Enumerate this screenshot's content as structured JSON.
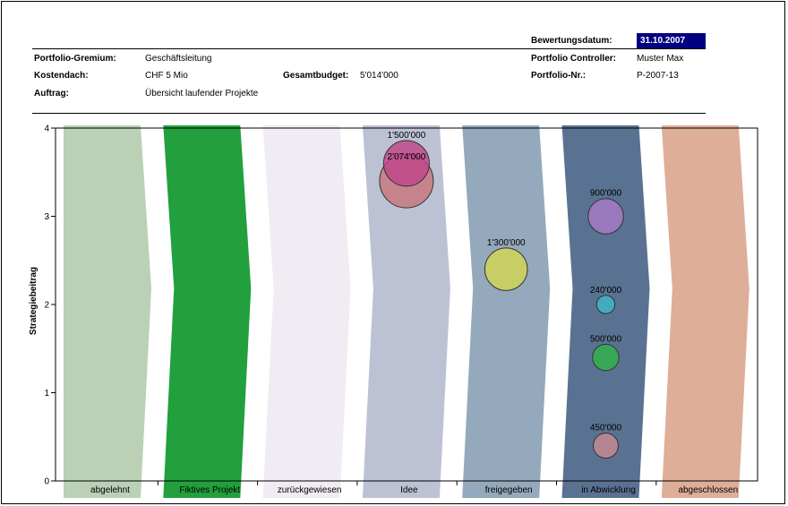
{
  "header": {
    "bewertungsdatum_label": "Bewertungsdatum:",
    "bewertungsdatum_value": "31.10.2007",
    "gremium_label": "Portfolio-Gremium:",
    "gremium_value": "Geschäftsleitung",
    "controller_label": "Portfolio Controller:",
    "controller_value": "Muster Max",
    "kostendach_label": "Kostendach:",
    "kostendach_value": "CHF 5 Mio",
    "gesamtbudget_label": "Gesamtbudget:",
    "gesamtbudget_value": "5'014'000",
    "portfolio_nr_label": "Portfolio-Nr.:",
    "portfolio_nr_value": "P-2007-13",
    "auftrag_label": "Auftrag:",
    "auftrag_value": "Übersicht laufender Projekte"
  },
  "chart_data": {
    "type": "scatter",
    "subtype": "bubble-over-phase-bands",
    "ylabel": "Strategiebeitrag",
    "ylim": [
      0,
      4
    ],
    "yticks": [
      "0",
      "1",
      "2",
      "3",
      "4"
    ],
    "categories": [
      "abgelehnt",
      "Fiktives Projekt",
      "zurückgewiesen",
      "Idee",
      "freigegeben",
      "in Abwicklung",
      "abgeschlossen"
    ],
    "band_colors": [
      "#bad1b6",
      "#21a03d",
      "#f1ecf4",
      "#bcc2d4",
      "#94a9bb",
      "#5a7291",
      "#deae98"
    ],
    "bubbles": [
      {
        "category": "Idee",
        "y": 3.4,
        "value": 2074000,
        "label": "2'074'000",
        "color": "#c7767c"
      },
      {
        "category": "Idee",
        "y": 3.6,
        "value": 1500000,
        "label": "1'500'000",
        "color": "#c0468a"
      },
      {
        "category": "freigegeben",
        "y": 2.4,
        "value": 1300000,
        "label": "1'300'000",
        "color": "#d2d653"
      },
      {
        "category": "in Abwicklung",
        "y": 3.0,
        "value": 900000,
        "label": "900'000",
        "color": "#a77ac8"
      },
      {
        "category": "in Abwicklung",
        "y": 2.0,
        "value": 240000,
        "label": "240'000",
        "color": "#3fb8c9"
      },
      {
        "category": "in Abwicklung",
        "y": 1.4,
        "value": 500000,
        "label": "500'000",
        "color": "#2fb34a"
      },
      {
        "category": "in Abwicklung",
        "y": 0.4,
        "value": 450000,
        "label": "450'000",
        "color": "#c98b93"
      }
    ]
  }
}
